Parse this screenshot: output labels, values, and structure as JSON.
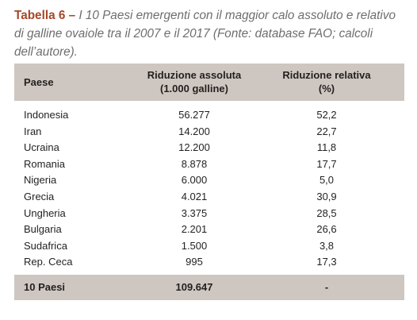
{
  "caption": {
    "label": "Tabella 6 –",
    "text": "I 10 Paesi emergenti con il maggior calo assoluto e relativo di galline ovaiole tra il 2007 e il 2017 (Fonte: database FAO; calcoli dell’autore)."
  },
  "table": {
    "header": [
      [
        "Paese"
      ],
      [
        "Riduzione assoluta",
        "(1.000 galline)"
      ],
      [
        "Riduzione relativa",
        "(%)"
      ]
    ],
    "rows": [
      [
        "Indonesia",
        "56.277",
        "52,2"
      ],
      [
        "Iran",
        "14.200",
        "22,7"
      ],
      [
        "Ucraina",
        "12.200",
        "11,8"
      ],
      [
        "Romania",
        "8.878",
        "17,7"
      ],
      [
        "Nigeria",
        "6.000",
        "5,0"
      ],
      [
        "Grecia",
        "4.021",
        "30,9"
      ],
      [
        "Ungheria",
        "3.375",
        "28,5"
      ],
      [
        "Bulgaria",
        "2.201",
        "26,6"
      ],
      [
        "Sudafrica",
        "1.500",
        "3,8"
      ],
      [
        "Rep. Ceca",
        "995",
        "17,3"
      ]
    ],
    "footer": [
      "10 Paesi",
      "109.647",
      "-"
    ]
  }
}
